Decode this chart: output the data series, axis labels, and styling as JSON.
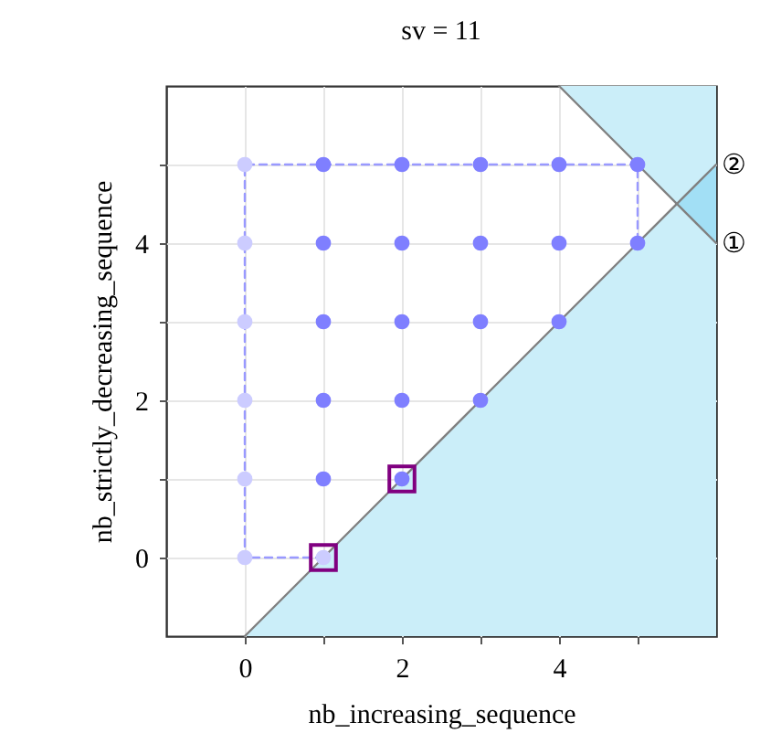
{
  "chart_data": {
    "type": "scatter",
    "title": "sv = 11",
    "xlabel": "nb_increasing_sequence",
    "ylabel": "nb_strictly_decreasing_sequence",
    "xlim": [
      -1,
      6
    ],
    "ylim": [
      -1,
      6
    ],
    "xticks": [
      0,
      {
        "value": 1,
        "label": null
      },
      2,
      {
        "value": 3,
        "label": null
      },
      4,
      {
        "value": 5,
        "label": null
      }
    ],
    "yticks": [
      0,
      {
        "value": 1,
        "label": null
      },
      2,
      {
        "value": 3,
        "label": null
      },
      4,
      {
        "value": 5,
        "label": null
      }
    ],
    "grid": true,
    "series": [
      {
        "type": "area",
        "color": "#cbeef9",
        "x": [
          0,
          5.5,
          6
        ],
        "values": [
          null,
          null,
          null
        ],
        "lower": [
          -1,
          -1,
          -1
        ],
        "upper": [
          -1,
          4.5,
          4
        ]
      },
      {
        "type": "area",
        "color": "#cbeef9",
        "x": [
          4,
          5.5,
          6
        ],
        "values": [
          null,
          null,
          null
        ],
        "lower": [
          6,
          4.5,
          5
        ],
        "upper": [
          6,
          6,
          6
        ]
      },
      {
        "type": "area",
        "color": "#a2dff5",
        "x": [
          5.5,
          6
        ],
        "values": [
          null,
          null
        ],
        "lower": [
          4.5,
          4
        ],
        "upper": [
          4.5,
          5
        ]
      },
      {
        "name": "②",
        "type": "line",
        "color": "#808080",
        "x": [
          0,
          1,
          2,
          3,
          4,
          5,
          6
        ],
        "values": [
          -1,
          0,
          1,
          2,
          3,
          4,
          5
        ]
      },
      {
        "name": "①",
        "type": "line",
        "color": "#808080",
        "x": [
          4,
          5,
          6
        ],
        "values": [
          6,
          5,
          4
        ]
      },
      {
        "type": "line",
        "line_style": "dashed",
        "color": "#9999ff",
        "x": [
          1,
          0,
          0,
          5,
          5
        ],
        "values": [
          0,
          0,
          5,
          5,
          4
        ]
      },
      {
        "type": "scatter",
        "marker": "circle",
        "color": "#ccccff",
        "x": [
          0,
          0,
          0,
          0,
          0,
          0,
          1
        ],
        "values": [
          0,
          1,
          2,
          3,
          4,
          5,
          0
        ]
      },
      {
        "type": "scatter",
        "marker": "circle",
        "color": "#7f7fff",
        "x": [
          1,
          1,
          1,
          1,
          1,
          2,
          2,
          2,
          2,
          2,
          3,
          3,
          3,
          3,
          4,
          4,
          4,
          5,
          5
        ],
        "values": [
          1,
          2,
          3,
          4,
          5,
          1,
          2,
          3,
          4,
          5,
          2,
          3,
          4,
          5,
          3,
          4,
          5,
          4,
          5
        ]
      },
      {
        "type": "scatter",
        "marker": "square",
        "color": "#800080",
        "x": [
          1,
          2
        ],
        "values": [
          0,
          1
        ]
      }
    ]
  }
}
